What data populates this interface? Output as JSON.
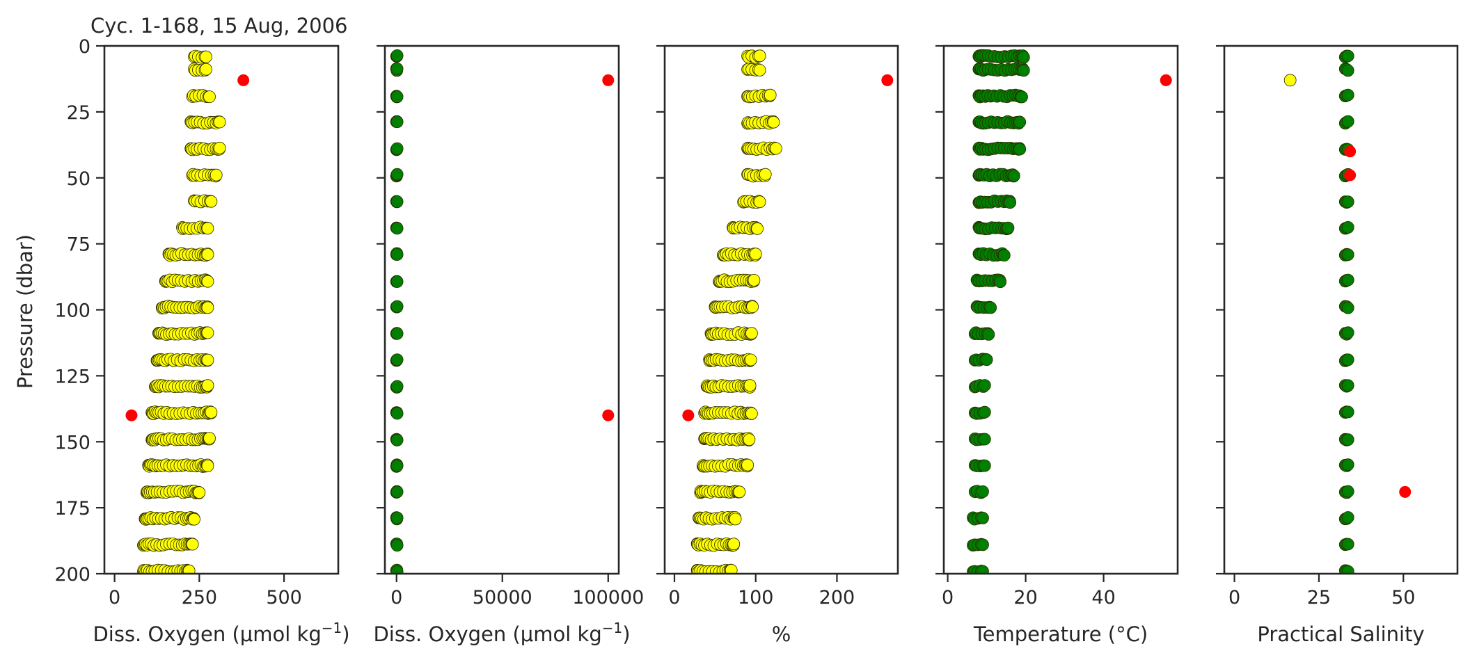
{
  "figure": {
    "title": "Cyc. 1-168, 15 Aug, 2006",
    "ylabel": "Pressure (dbar)"
  },
  "chart_data": [
    {
      "type": "scatter",
      "xlabel_main": "Diss. Oxygen (μmol kg",
      "xlabel_sup": "−1",
      "xlabel_tail": ")",
      "xlim": [
        -30,
        660
      ],
      "xticks": [
        0,
        250,
        500
      ],
      "xtick_labels": [
        "0",
        "250",
        "500"
      ],
      "ylim": [
        200,
        0
      ],
      "yticks": [
        0,
        25,
        50,
        75,
        100,
        125,
        150,
        175,
        200
      ],
      "ytick_labels": [
        "0",
        "25",
        "50",
        "75",
        "100",
        "125",
        "150",
        "175",
        "200"
      ],
      "point_color": "#ffff00",
      "outlier_color": "#ff0000",
      "profile": [
        {
          "p": 4,
          "min": 235,
          "max": 270
        },
        {
          "p": 9,
          "min": 235,
          "max": 270
        },
        {
          "p": 19,
          "min": 230,
          "max": 280
        },
        {
          "p": 29,
          "min": 225,
          "max": 310
        },
        {
          "p": 39,
          "min": 225,
          "max": 310
        },
        {
          "p": 49,
          "min": 230,
          "max": 300
        },
        {
          "p": 59,
          "min": 235,
          "max": 285
        },
        {
          "p": 69,
          "min": 200,
          "max": 275
        },
        {
          "p": 79,
          "min": 160,
          "max": 275
        },
        {
          "p": 89,
          "min": 150,
          "max": 275
        },
        {
          "p": 99,
          "min": 140,
          "max": 275
        },
        {
          "p": 109,
          "min": 130,
          "max": 275
        },
        {
          "p": 119,
          "min": 125,
          "max": 275
        },
        {
          "p": 129,
          "min": 120,
          "max": 275
        },
        {
          "p": 139,
          "min": 110,
          "max": 285
        },
        {
          "p": 149,
          "min": 110,
          "max": 280
        },
        {
          "p": 159,
          "min": 100,
          "max": 275
        },
        {
          "p": 169,
          "min": 95,
          "max": 250
        },
        {
          "p": 179,
          "min": 90,
          "max": 235
        },
        {
          "p": 189,
          "min": 85,
          "max": 230
        },
        {
          "p": 199,
          "min": 85,
          "max": 220
        }
      ],
      "outliers": [
        {
          "x": 380,
          "p": 13
        },
        {
          "x": 50,
          "p": 140
        }
      ]
    },
    {
      "type": "scatter",
      "xlabel_main": "Diss. Oxygen (μmol kg",
      "xlabel_sup": "−1",
      "xlabel_tail": ")",
      "xlim": [
        -5500,
        105000
      ],
      "xticks": [
        0,
        50000,
        100000
      ],
      "xtick_labels": [
        "0",
        "50000",
        "100000"
      ],
      "ylim": [
        200,
        0
      ],
      "yticks": [
        0,
        25,
        50,
        75,
        100,
        125,
        150,
        175,
        200
      ],
      "ytick_labels": [
        "",
        "",
        "",
        "",
        "",
        "",
        "",
        "",
        ""
      ],
      "point_color": "#008000",
      "outlier_color": "#ff0000",
      "profile": [
        {
          "p": 4,
          "min": 0,
          "max": 300
        },
        {
          "p": 9,
          "min": 0,
          "max": 300
        },
        {
          "p": 19,
          "min": 0,
          "max": 300
        },
        {
          "p": 29,
          "min": 0,
          "max": 300
        },
        {
          "p": 39,
          "min": 0,
          "max": 300
        },
        {
          "p": 49,
          "min": 0,
          "max": 300
        },
        {
          "p": 59,
          "min": 0,
          "max": 300
        },
        {
          "p": 69,
          "min": 0,
          "max": 300
        },
        {
          "p": 79,
          "min": 0,
          "max": 300
        },
        {
          "p": 89,
          "min": 0,
          "max": 300
        },
        {
          "p": 99,
          "min": 0,
          "max": 300
        },
        {
          "p": 109,
          "min": 0,
          "max": 300
        },
        {
          "p": 119,
          "min": 0,
          "max": 300
        },
        {
          "p": 129,
          "min": 0,
          "max": 300
        },
        {
          "p": 139,
          "min": 0,
          "max": 300
        },
        {
          "p": 149,
          "min": 0,
          "max": 300
        },
        {
          "p": 159,
          "min": 0,
          "max": 300
        },
        {
          "p": 169,
          "min": 0,
          "max": 300
        },
        {
          "p": 179,
          "min": 0,
          "max": 300
        },
        {
          "p": 189,
          "min": 0,
          "max": 300
        },
        {
          "p": 199,
          "min": 0,
          "max": 300
        }
      ],
      "outliers": [
        {
          "x": 100000,
          "p": 13
        },
        {
          "x": 100000,
          "p": 140
        }
      ]
    },
    {
      "type": "scatter",
      "xlabel_main": "%",
      "xlabel_sup": "",
      "xlabel_tail": "",
      "xlim": [
        -12,
        275
      ],
      "xticks": [
        0,
        100,
        200
      ],
      "xtick_labels": [
        "0",
        "100",
        "200"
      ],
      "ylim": [
        200,
        0
      ],
      "yticks": [
        0,
        25,
        50,
        75,
        100,
        125,
        150,
        175,
        200
      ],
      "ytick_labels": [
        "",
        "",
        "",
        "",
        "",
        "",
        "",
        "",
        ""
      ],
      "point_color": "#ffff00",
      "outlier_color": "#ff0000",
      "profile": [
        {
          "p": 4,
          "min": 90,
          "max": 105
        },
        {
          "p": 9,
          "min": 90,
          "max": 105
        },
        {
          "p": 19,
          "min": 90,
          "max": 118
        },
        {
          "p": 29,
          "min": 90,
          "max": 122
        },
        {
          "p": 39,
          "min": 90,
          "max": 125
        },
        {
          "p": 49,
          "min": 90,
          "max": 112
        },
        {
          "p": 59,
          "min": 85,
          "max": 105
        },
        {
          "p": 69,
          "min": 72,
          "max": 102
        },
        {
          "p": 79,
          "min": 60,
          "max": 100
        },
        {
          "p": 89,
          "min": 55,
          "max": 98
        },
        {
          "p": 99,
          "min": 50,
          "max": 96
        },
        {
          "p": 109,
          "min": 45,
          "max": 95
        },
        {
          "p": 119,
          "min": 43,
          "max": 94
        },
        {
          "p": 129,
          "min": 40,
          "max": 93
        },
        {
          "p": 139,
          "min": 37,
          "max": 95
        },
        {
          "p": 149,
          "min": 37,
          "max": 92
        },
        {
          "p": 159,
          "min": 35,
          "max": 90
        },
        {
          "p": 169,
          "min": 32,
          "max": 80
        },
        {
          "p": 179,
          "min": 30,
          "max": 75
        },
        {
          "p": 189,
          "min": 28,
          "max": 73
        },
        {
          "p": 199,
          "min": 28,
          "max": 70
        }
      ],
      "outliers": [
        {
          "x": 262,
          "p": 13
        },
        {
          "x": 17,
          "p": 140
        }
      ]
    },
    {
      "type": "scatter",
      "xlabel_main": "Temperature (°C)",
      "xlabel_sup": "",
      "xlabel_tail": "",
      "xlim": [
        -1,
        59
      ],
      "xticks": [
        0,
        20,
        40
      ],
      "xtick_labels": [
        "0",
        "20",
        "40"
      ],
      "ylim": [
        200,
        0
      ],
      "yticks": [
        0,
        25,
        50,
        75,
        100,
        125,
        150,
        175,
        200
      ],
      "ytick_labels": [
        "",
        "",
        "",
        "",
        "",
        "",
        "",
        "",
        ""
      ],
      "point_color": "#008000",
      "outlier_color": "#ff0000",
      "profile": [
        {
          "p": 4,
          "min": 8,
          "max": 19.5
        },
        {
          "p": 9,
          "min": 8,
          "max": 19.5
        },
        {
          "p": 19,
          "min": 8,
          "max": 19
        },
        {
          "p": 29,
          "min": 8,
          "max": 18.5
        },
        {
          "p": 39,
          "min": 8,
          "max": 18.5
        },
        {
          "p": 49,
          "min": 8,
          "max": 17
        },
        {
          "p": 59,
          "min": 8,
          "max": 16
        },
        {
          "p": 69,
          "min": 8,
          "max": 15.5
        },
        {
          "p": 79,
          "min": 8,
          "max": 14.5
        },
        {
          "p": 89,
          "min": 7.5,
          "max": 13.5
        },
        {
          "p": 99,
          "min": 7.5,
          "max": 11
        },
        {
          "p": 109,
          "min": 7,
          "max": 10.5
        },
        {
          "p": 119,
          "min": 7,
          "max": 10
        },
        {
          "p": 129,
          "min": 7,
          "max": 9.5
        },
        {
          "p": 139,
          "min": 7,
          "max": 9.5
        },
        {
          "p": 149,
          "min": 7,
          "max": 9.5
        },
        {
          "p": 159,
          "min": 7,
          "max": 9.5
        },
        {
          "p": 169,
          "min": 7,
          "max": 9
        },
        {
          "p": 179,
          "min": 6.5,
          "max": 9
        },
        {
          "p": 189,
          "min": 6.5,
          "max": 9
        },
        {
          "p": 199,
          "min": 6.5,
          "max": 9
        }
      ],
      "outliers": [
        {
          "x": 56,
          "p": 13
        }
      ]
    },
    {
      "type": "scatter",
      "xlabel_main": "Practical Salinity",
      "xlabel_sup": "",
      "xlabel_tail": "",
      "xlim": [
        -3,
        66
      ],
      "xticks": [
        0,
        25,
        50
      ],
      "xtick_labels": [
        "0",
        "25",
        "50"
      ],
      "ylim": [
        200,
        0
      ],
      "yticks": [
        0,
        25,
        50,
        75,
        100,
        125,
        150,
        175,
        200
      ],
      "ytick_labels": [
        "",
        "",
        "",
        "",
        "",
        "",
        "",
        "",
        ""
      ],
      "point_color": "#008000",
      "outlier_color": "#ff0000",
      "profile": [
        {
          "p": 4,
          "min": 32.8,
          "max": 33.6
        },
        {
          "p": 9,
          "min": 32.8,
          "max": 33.6
        },
        {
          "p": 19,
          "min": 32.8,
          "max": 33.6
        },
        {
          "p": 29,
          "min": 32.8,
          "max": 33.6
        },
        {
          "p": 39,
          "min": 32.8,
          "max": 33.6
        },
        {
          "p": 49,
          "min": 32.8,
          "max": 33.6
        },
        {
          "p": 59,
          "min": 32.8,
          "max": 33.6
        },
        {
          "p": 69,
          "min": 32.8,
          "max": 33.6
        },
        {
          "p": 79,
          "min": 32.8,
          "max": 33.6
        },
        {
          "p": 89,
          "min": 32.8,
          "max": 33.6
        },
        {
          "p": 99,
          "min": 32.8,
          "max": 33.6
        },
        {
          "p": 109,
          "min": 32.8,
          "max": 33.6
        },
        {
          "p": 119,
          "min": 32.8,
          "max": 33.6
        },
        {
          "p": 129,
          "min": 32.8,
          "max": 33.6
        },
        {
          "p": 139,
          "min": 32.8,
          "max": 33.6
        },
        {
          "p": 149,
          "min": 32.8,
          "max": 33.6
        },
        {
          "p": 159,
          "min": 32.8,
          "max": 33.6
        },
        {
          "p": 169,
          "min": 32.8,
          "max": 33.6
        },
        {
          "p": 179,
          "min": 32.8,
          "max": 33.6
        },
        {
          "p": 189,
          "min": 32.8,
          "max": 33.6
        },
        {
          "p": 199,
          "min": 32.8,
          "max": 33.6
        }
      ],
      "outliers": [
        {
          "x": 50.5,
          "p": 169
        },
        {
          "x": 34.2,
          "p": 40
        },
        {
          "x": 34.2,
          "p": 49
        }
      ],
      "extra_points": [
        {
          "x": 16.5,
          "p": 13,
          "color": "#ffff00"
        }
      ]
    }
  ]
}
